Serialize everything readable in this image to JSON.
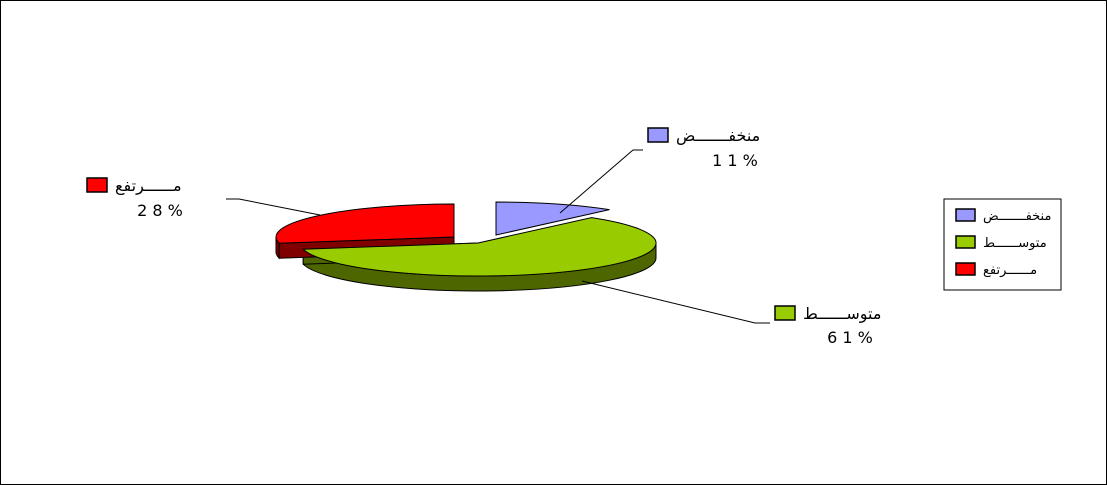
{
  "chart_data": {
    "type": "pie",
    "style": "3d-exploded",
    "slices": [
      {
        "label": "منخفـــــــض",
        "value": 11,
        "value_label": "1 1 %",
        "color": "#9999ff",
        "side_color": "#4d4d80"
      },
      {
        "label": "متوســــــط",
        "value": 61,
        "value_label": "6 1 %",
        "color": "#99cc00",
        "side_color": "#4d6600"
      },
      {
        "label": "مــــــرتفع",
        "value": 28,
        "value_label": "2 8 %",
        "color": "#ff0000",
        "side_color": "#800000"
      }
    ],
    "legend": {
      "position": "right",
      "entries": [
        "منخفـــــــض",
        "متوســــــط",
        "مــــــرتفع"
      ]
    },
    "title": ""
  }
}
